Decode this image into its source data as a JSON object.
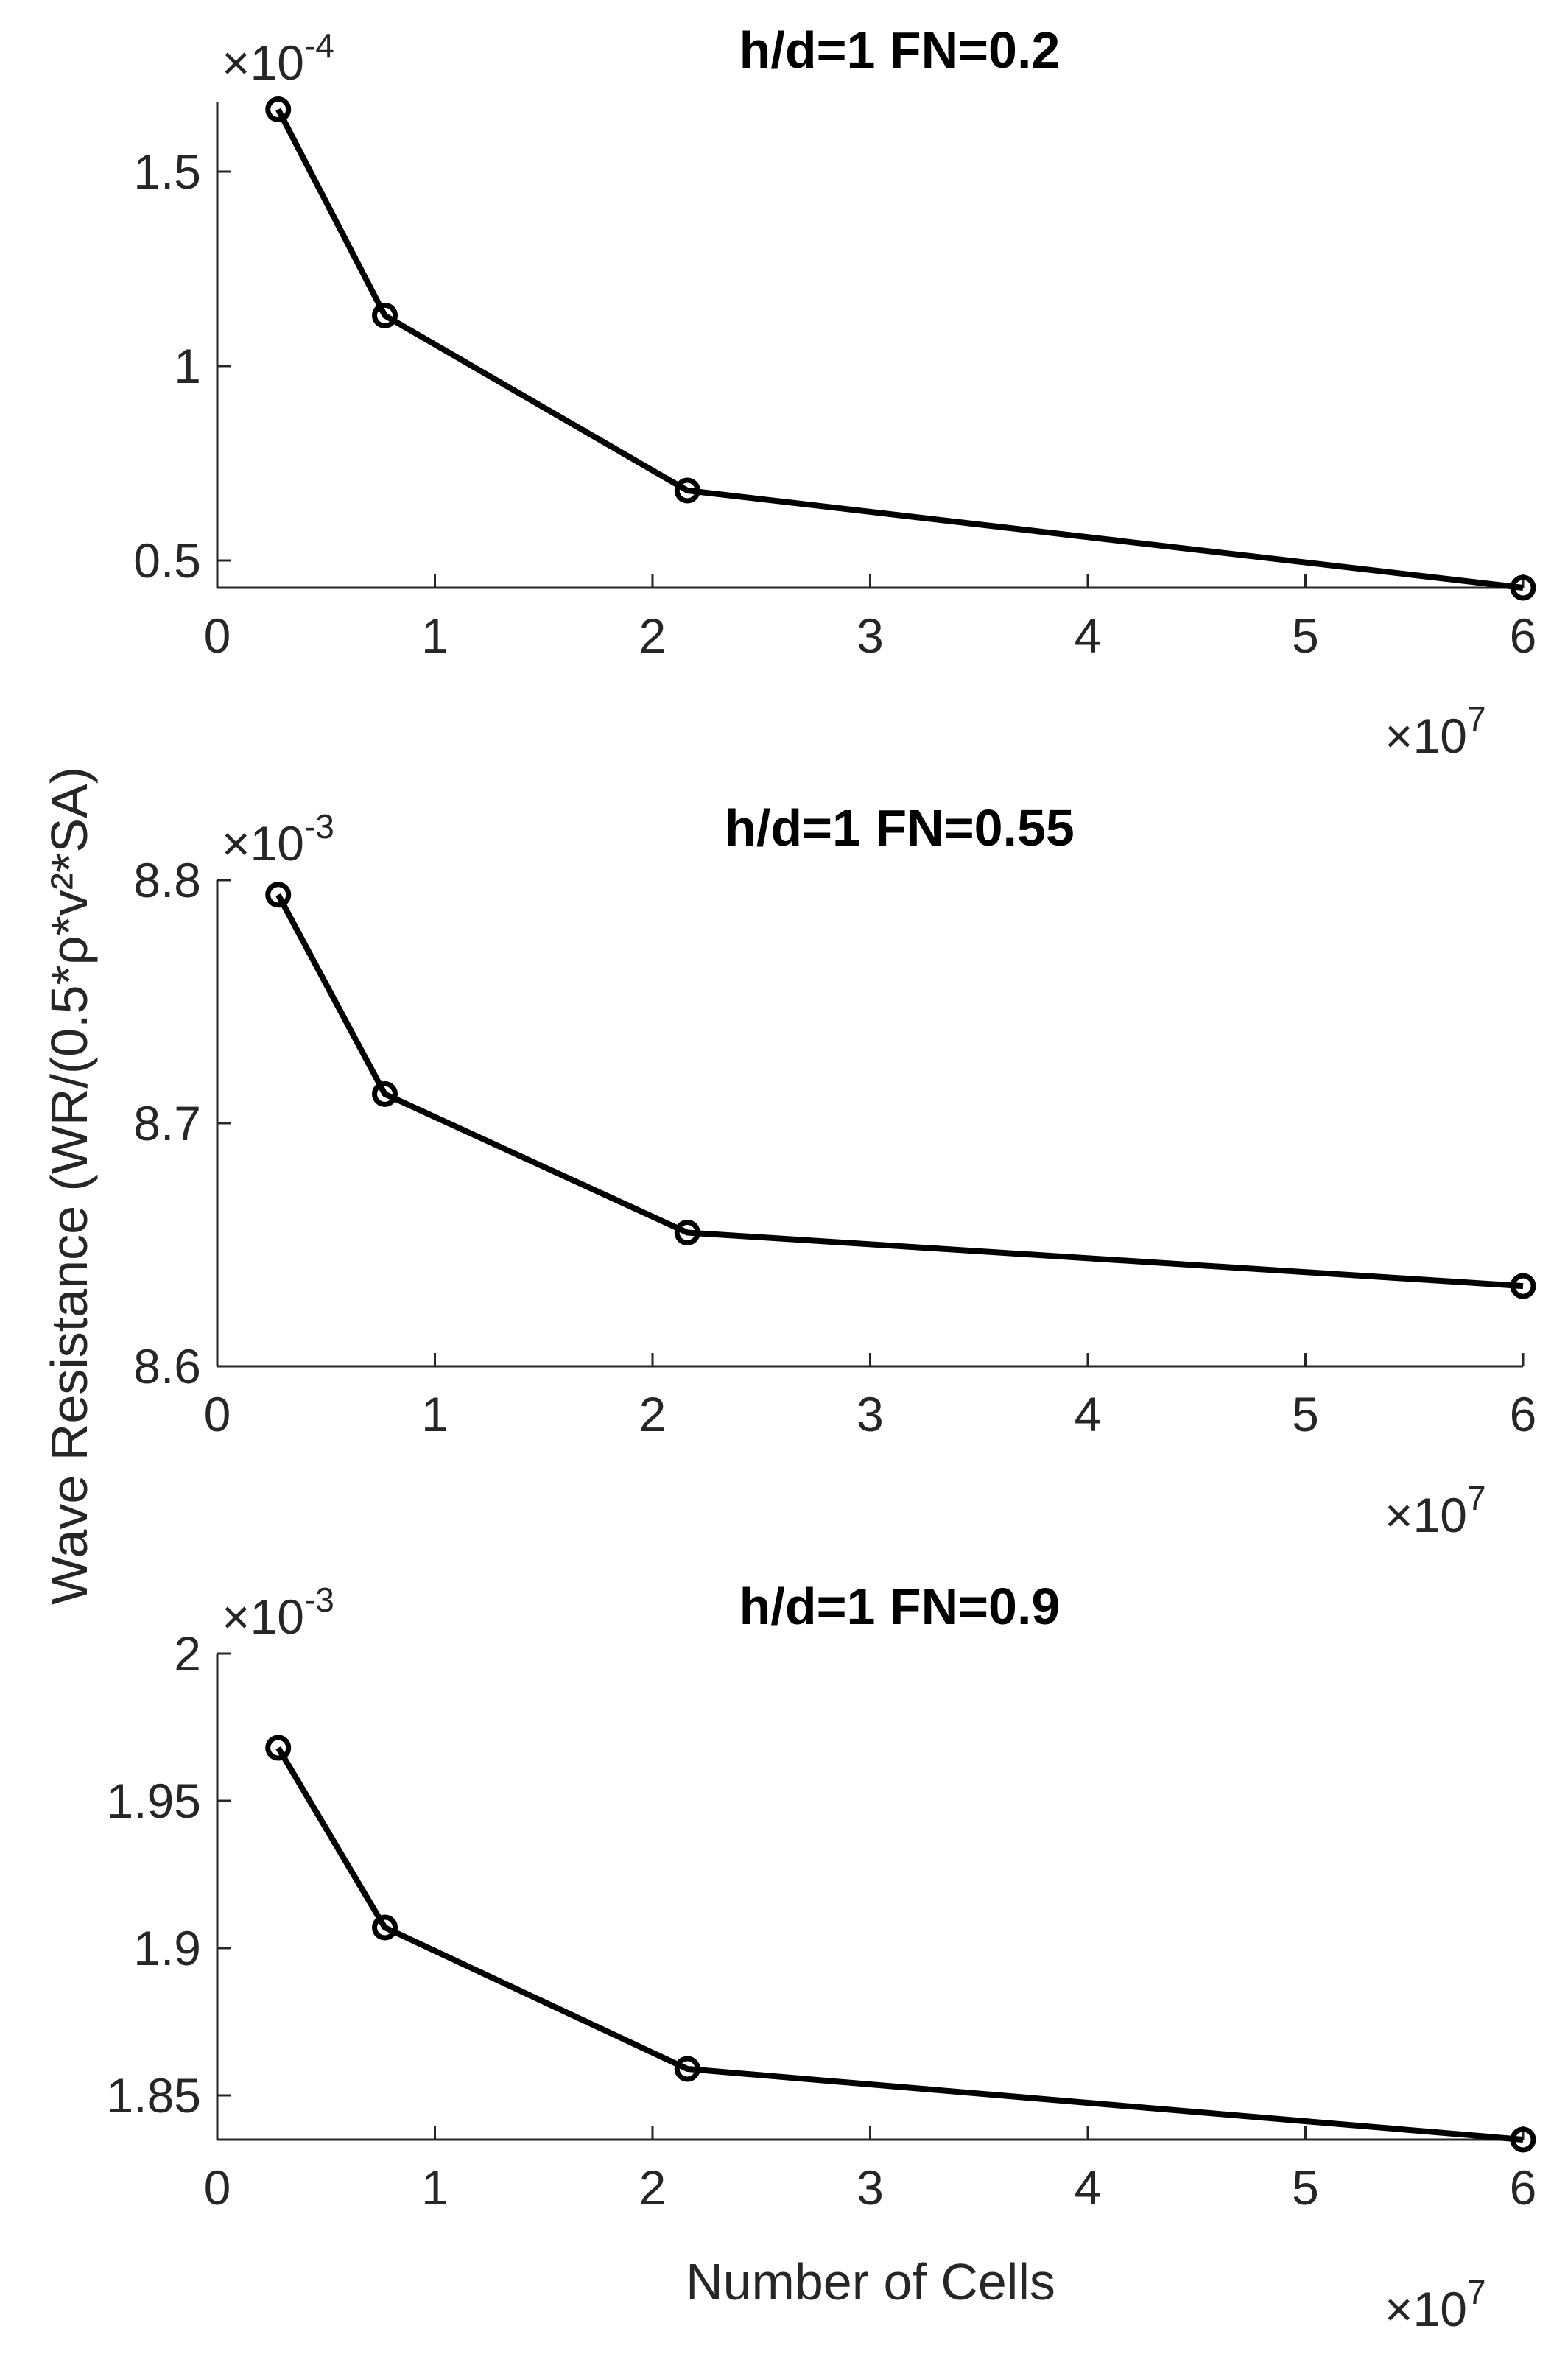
{
  "figure": {
    "ylabel": "Wave Resistance (WR/(0.5*ρ*v²*SA)",
    "xlabel": "Number of Cells"
  },
  "colors": {
    "line": "#000000",
    "axis": "#262626",
    "background": "#ffffff"
  },
  "chart_data": [
    {
      "type": "line",
      "title": "h/d=1 FN=0.2",
      "xlabel": "Number of Cells",
      "ylabel": "Wave Resistance (WR/(0.5*ρ*v²*SA)",
      "x_exponent_label": "×10^7",
      "y_exponent_label": "×10^-4",
      "x_multiplier": "×10",
      "x_exponent": "7",
      "y_multiplier": "×10",
      "y_exponent": "-4",
      "xlim": [
        0,
        6
      ],
      "ylim": [
        0.43,
        1.68
      ],
      "xticks": [
        "0",
        "1",
        "2",
        "3",
        "4",
        "5",
        "6"
      ],
      "yticks": [
        "0.5",
        "1",
        "1.5"
      ],
      "ytick_values": [
        0.5,
        1,
        1.5
      ],
      "marker": "circle",
      "grid": false,
      "series": [
        {
          "x": [
            0.28,
            0.77,
            2.16,
            6.0
          ],
          "y": [
            1.66,
            1.13,
            0.68,
            0.43
          ]
        }
      ]
    },
    {
      "type": "line",
      "title": "h/d=1 FN=0.55",
      "xlabel": "Number of Cells",
      "ylabel": "Wave Resistance (WR/(0.5*ρ*v²*SA)",
      "x_multiplier": "×10",
      "x_exponent": "7",
      "y_multiplier": "×10",
      "y_exponent": "-3",
      "xlim": [
        0,
        6
      ],
      "ylim": [
        8.6,
        8.8
      ],
      "xticks": [
        "0",
        "1",
        "2",
        "3",
        "4",
        "5",
        "6"
      ],
      "yticks": [
        "8.6",
        "8.7",
        "8.8"
      ],
      "ytick_values": [
        8.6,
        8.7,
        8.8
      ],
      "marker": "circle",
      "grid": false,
      "series": [
        {
          "x": [
            0.28,
            0.77,
            2.16,
            6.0
          ],
          "y": [
            8.794,
            8.712,
            8.655,
            8.633
          ]
        }
      ]
    },
    {
      "type": "line",
      "title": "h/d=1 FN=0.9",
      "xlabel": "Number of Cells",
      "ylabel": "Wave Resistance (WR/(0.5*ρ*v²*SA)",
      "x_multiplier": "×10",
      "x_exponent": "7",
      "y_multiplier": "×10",
      "y_exponent": "-3",
      "xlim": [
        0,
        6
      ],
      "ylim": [
        1.835,
        2.0
      ],
      "xticks": [
        "0",
        "1",
        "2",
        "3",
        "4",
        "5",
        "6"
      ],
      "yticks": [
        "1.85",
        "1.9",
        "1.95",
        "2"
      ],
      "ytick_values": [
        1.85,
        1.9,
        1.95,
        2.0
      ],
      "marker": "circle",
      "grid": false,
      "series": [
        {
          "x": [
            0.28,
            0.77,
            2.16,
            6.0
          ],
          "y": [
            1.968,
            1.907,
            1.859,
            1.835
          ]
        }
      ]
    }
  ]
}
